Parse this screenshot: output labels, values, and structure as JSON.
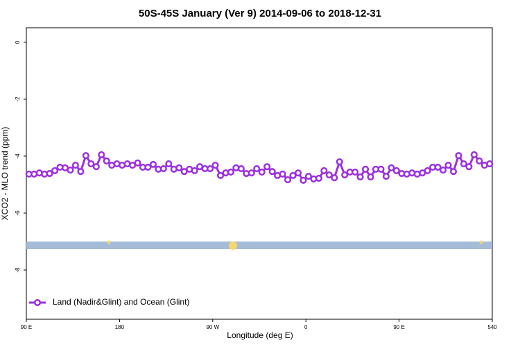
{
  "chart_data": {
    "type": "line",
    "title": "50S-45S January (Ver 9)   2014-09-06 to 2018-12-31",
    "x_label": "Longitude (deg E)",
    "y_label": "XCO2 - MLO trend (ppm)",
    "xlim": [
      90,
      540
    ],
    "xticks": [
      {
        "value": 90,
        "label": "90 E"
      },
      180,
      {
        "value": 270,
        "label": "90 W"
      },
      {
        "value": 360,
        "label": "0"
      },
      {
        "value": 450,
        "label": "90 E"
      },
      540
    ],
    "ylim": [
      -9.73,
      0.51
    ],
    "yticks": [
      0,
      -2,
      -4,
      -6,
      -8
    ],
    "legend": "bottom-left",
    "x": [
      92.5,
      97.5,
      102.5,
      107.5,
      112.5,
      117.5,
      122.5,
      127.5,
      132.5,
      137.5,
      142.5,
      147.5,
      152.5,
      157.5,
      162.5,
      167.5,
      172.5,
      177.5,
      182.5,
      187.5,
      192.5,
      197.5,
      202.5,
      207.5,
      212.5,
      217.5,
      222.5,
      227.5,
      232.5,
      237.5,
      242.5,
      247.5,
      252.5,
      257.5,
      262.5,
      267.5,
      272.5,
      277.5,
      282.5,
      287.5,
      292.5,
      297.5,
      302.5,
      307.5,
      312.5,
      317.5,
      322.5,
      327.5,
      332.5,
      337.5,
      342.5,
      347.5,
      352.5,
      357.5,
      362.5,
      367.5,
      372.5,
      377.5,
      382.5,
      387.5,
      392.5,
      397.5,
      402.5,
      407.5,
      412.5,
      417.5,
      422.5,
      427.5,
      432.5,
      437.5,
      442.5,
      447.5,
      452.5,
      457.5,
      462.5,
      467.5,
      472.5,
      477.5,
      482.5,
      487.5,
      492.5,
      497.5,
      502.5,
      507.5,
      512.5,
      517.5,
      522.5,
      527.5,
      532.5,
      537.5
    ],
    "series": [
      {
        "name": "Land (Nadir&Glint) and Ocean (Glint)",
        "color": "#9b30e0",
        "values": [
          -4.63,
          -4.63,
          -4.59,
          -4.63,
          -4.61,
          -4.51,
          -4.39,
          -4.41,
          -4.49,
          -4.32,
          -4.54,
          -3.98,
          -4.27,
          -4.37,
          -3.95,
          -4.17,
          -4.32,
          -4.27,
          -4.32,
          -4.27,
          -4.32,
          -4.24,
          -4.39,
          -4.39,
          -4.29,
          -4.46,
          -4.44,
          -4.27,
          -4.46,
          -4.41,
          -4.54,
          -4.46,
          -4.51,
          -4.37,
          -4.44,
          -4.44,
          -4.32,
          -4.68,
          -4.59,
          -4.56,
          -4.41,
          -4.44,
          -4.61,
          -4.59,
          -4.44,
          -4.56,
          -4.37,
          -4.54,
          -4.68,
          -4.63,
          -4.83,
          -4.68,
          -4.59,
          -4.85,
          -4.71,
          -4.8,
          -4.78,
          -4.51,
          -4.66,
          -4.76,
          -4.2,
          -4.66,
          -4.56,
          -4.56,
          -4.73,
          -4.46,
          -4.73,
          -4.46,
          -4.46,
          -4.71,
          -4.41,
          -4.51,
          -4.61,
          -4.63,
          -4.59,
          -4.63,
          -4.59,
          -4.51,
          -4.39,
          -4.39,
          -4.49,
          -4.32,
          -4.54,
          -3.98,
          -4.27,
          -4.37,
          -3.95,
          -4.17,
          -4.32,
          -4.27
        ]
      }
    ]
  }
}
